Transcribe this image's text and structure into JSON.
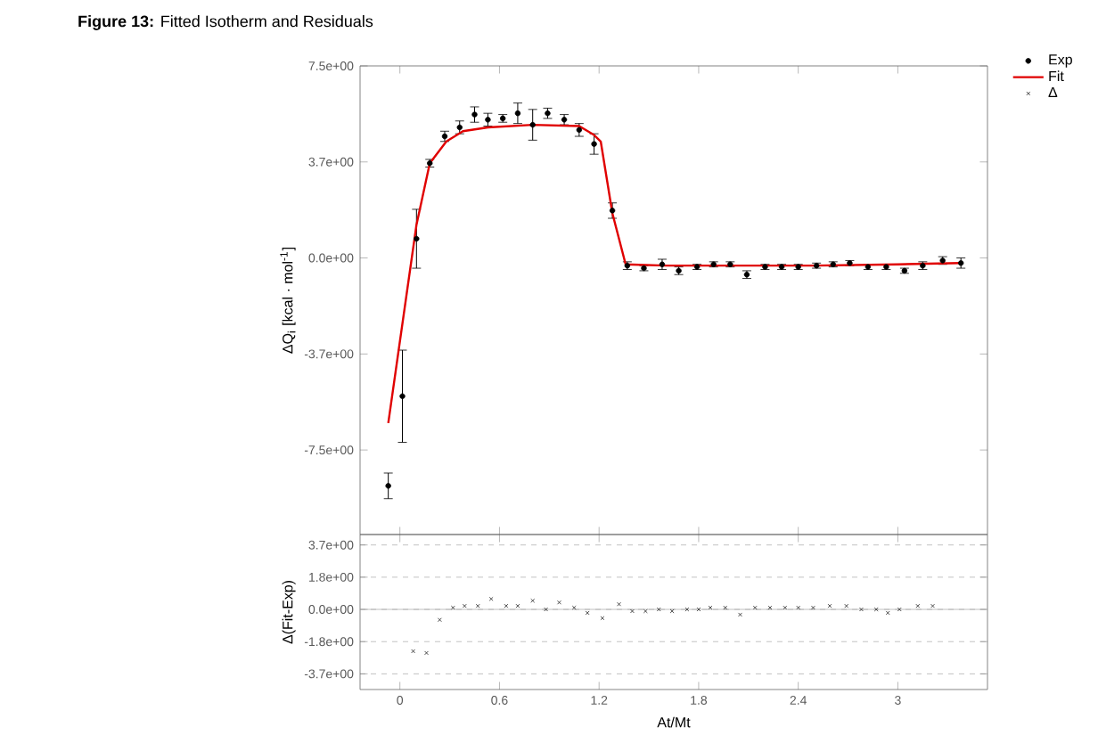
{
  "chart_data": [
    {
      "type": "scatter",
      "title": "**Figure 13:** Fitted Isotherm and Residuals",
      "ylabel": "ΔQ$_{i}$ [kcal · mol$^{-1}$]",
      "xlim": [
        -0.24,
        3.54
      ],
      "ylim": [
        -10.8,
        7.5
      ],
      "xticks": [
        0,
        0.6,
        1.2,
        1.8,
        2.4,
        3
      ],
      "yticks": [
        {
          "value": 7.5,
          "label": "7.5e+00"
        },
        {
          "value": 3.75,
          "label": "3.7e+00"
        },
        {
          "value": 0,
          "label": "0.0e+00"
        },
        {
          "value": -3.75,
          "label": "-3.7e+00"
        },
        {
          "value": -7.5,
          "label": "-7.5e+00"
        }
      ],
      "tick_labels": "y",
      "legend": "top right",
      "series": [
        {
          "name": "Exp",
          "marker": "circle",
          "color": "#000000",
          "x": [
            -0.07,
            0.015,
            0.1,
            0.18,
            0.27,
            0.36,
            0.45,
            0.53,
            0.62,
            0.71,
            0.8,
            0.89,
            0.99,
            1.08,
            1.17,
            1.28,
            1.37,
            1.47,
            1.58,
            1.68,
            1.79,
            1.89,
            1.99,
            2.09,
            2.2,
            2.3,
            2.4,
            2.51,
            2.61,
            2.71,
            2.82,
            2.93,
            3.04,
            3.15,
            3.27,
            3.38
          ],
          "values": [
            -8.9,
            -5.4,
            0.75,
            3.7,
            4.75,
            5.1,
            5.6,
            5.4,
            5.45,
            5.65,
            5.2,
            5.65,
            5.4,
            5.0,
            4.45,
            1.85,
            -0.3,
            -0.4,
            -0.25,
            -0.5,
            -0.35,
            -0.25,
            -0.25,
            -0.65,
            -0.35,
            -0.35,
            -0.35,
            -0.3,
            -0.25,
            -0.2,
            -0.35,
            -0.35,
            -0.5,
            -0.3,
            -0.1,
            -0.2
          ],
          "errors": [
            0.5,
            1.8,
            1.15,
            0.15,
            0.2,
            0.25,
            0.3,
            0.25,
            0.15,
            0.4,
            0.6,
            0.2,
            0.2,
            0.25,
            0.4,
            0.3,
            0.15,
            0.1,
            0.2,
            0.15,
            0.1,
            0.1,
            0.1,
            0.15,
            0.1,
            0.1,
            0.1,
            0.1,
            0.1,
            0.1,
            0.1,
            0.1,
            0.1,
            0.15,
            0.15,
            0.2
          ]
        },
        {
          "name": "Fit",
          "type": "line",
          "marker": "none",
          "color": "#e00000",
          "x": [
            -0.07,
            0.1,
            0.18,
            0.28,
            0.38,
            0.53,
            0.8,
            1.08,
            1.17,
            1.21,
            1.28,
            1.36,
            1.6,
            2.0,
            2.5,
            3.0,
            3.38
          ],
          "values": [
            -6.45,
            1.3,
            3.7,
            4.55,
            4.95,
            5.1,
            5.2,
            5.15,
            4.8,
            4.55,
            1.75,
            -0.25,
            -0.3,
            -0.3,
            -0.3,
            -0.25,
            -0.2
          ]
        }
      ]
    },
    {
      "type": "scatter",
      "xlabel": "At/Mt",
      "ylabel": "Δ(Fit-Exp)",
      "xlim": [
        -0.24,
        3.54
      ],
      "ylim": [
        -4.6,
        4.3
      ],
      "xticks": [
        0,
        0.6,
        1.2,
        1.8,
        2.4,
        3
      ],
      "yticks": [
        {
          "value": 3.7,
          "label": "3.7e+00"
        },
        {
          "value": 1.85,
          "label": "1.8e+00"
        },
        {
          "value": 0,
          "label": "0.0e+00"
        },
        {
          "value": -1.85,
          "label": "-1.8e+00"
        },
        {
          "value": -3.7,
          "label": "-3.7e+00"
        }
      ],
      "grid": "y",
      "ref_lines": [
        {
          "axis": "y",
          "value": 0,
          "color": "#b0b0b0"
        }
      ],
      "series": [
        {
          "name": "Δ",
          "marker": "cross",
          "color": "#202020",
          "x": [
            0.08,
            0.16,
            0.24,
            0.32,
            0.39,
            0.47,
            0.55,
            0.64,
            0.71,
            0.8,
            0.88,
            0.96,
            1.05,
            1.13,
            1.22,
            1.32,
            1.4,
            1.48,
            1.56,
            1.64,
            1.73,
            1.8,
            1.87,
            1.96,
            2.05,
            2.14,
            2.23,
            2.32,
            2.4,
            2.49,
            2.59,
            2.69,
            2.78,
            2.87,
            2.94,
            3.01,
            3.12,
            3.21
          ],
          "values": [
            -2.4,
            -2.5,
            -0.6,
            0.1,
            0.2,
            0.2,
            0.6,
            0.2,
            0.2,
            0.5,
            0,
            0.4,
            0.1,
            -0.2,
            -0.5,
            0.3,
            -0.1,
            -0.1,
            0,
            -0.1,
            0,
            0,
            0.1,
            0.1,
            -0.3,
            0.1,
            0.1,
            0.1,
            0.1,
            0.1,
            0.2,
            0.2,
            0,
            0,
            -0.2,
            0,
            0.2,
            0.2
          ]
        }
      ]
    }
  ]
}
